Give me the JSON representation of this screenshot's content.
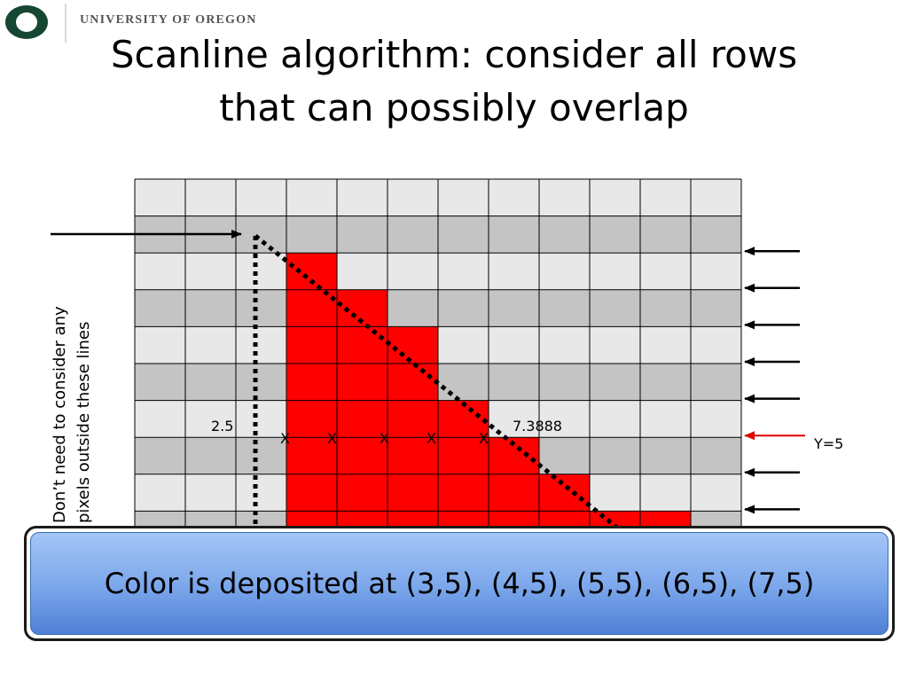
{
  "header": {
    "logo": {
      "color": "#154733",
      "icon": "oregon-o-logo"
    },
    "university_name": "UNIVERSITY OF OREGON"
  },
  "slide": {
    "title_lines": [
      "Scanline algorithm: consider all rows",
      "that can possibly overlap"
    ]
  },
  "diagram": {
    "grid": {
      "columns": 12,
      "rows_visible": 10,
      "row_color_light": "#e8e8e8",
      "row_color_dark": "#c4c4c4"
    },
    "filled_cells": {
      "color": "#ff0000",
      "spans": [
        [
          3,
          3
        ],
        [
          3,
          4
        ],
        [
          3,
          5
        ],
        [
          3,
          5
        ],
        [
          3,
          6
        ],
        [
          3,
          7
        ],
        [
          3,
          8
        ],
        [
          3,
          10
        ]
      ]
    },
    "vertical_text_lines": [
      "Don’t need to consider any",
      "pixels outside these lines"
    ],
    "x_marks": [
      "X",
      "X",
      "X",
      "X",
      "X"
    ],
    "labels": {
      "left_x": "2.5",
      "right_x": "7.3888",
      "scanline": "Y=5"
    },
    "row_arrows": 8,
    "scanline_arrow_color": "#e00000"
  },
  "callout": {
    "text": "Color is deposited at (3,5), (4,5), (5,5), (6,5), (7,5)",
    "color": "#7ea9ec"
  }
}
